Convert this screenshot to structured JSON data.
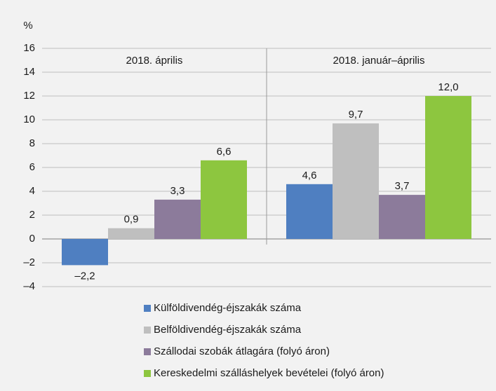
{
  "chart_data": {
    "type": "bar",
    "ylabel": "%",
    "categories": [
      "2018. április",
      "2018. január–április"
    ],
    "series": [
      {
        "name": "Külföldivendég-éjszakák száma",
        "color": "#4f7fc1",
        "values": [
          -2.2,
          4.6
        ],
        "value_labels": [
          "–2,2",
          "4,6"
        ]
      },
      {
        "name": "Belföldivendég-éjszakák száma",
        "color": "#bfbfbf",
        "values": [
          0.9,
          9.7
        ],
        "value_labels": [
          "0,9",
          "9,7"
        ]
      },
      {
        "name": "Szállodai szobák átlagára (folyó áron)",
        "color": "#8c7b9b",
        "values": [
          3.3,
          3.7
        ],
        "value_labels": [
          "3,3",
          "3,7"
        ]
      },
      {
        "name": "Kereskedelmi szálláshelyek bevételei (folyó áron)",
        "color": "#8dc63f",
        "values": [
          6.6,
          12.0
        ],
        "value_labels": [
          "6,6",
          "12,0"
        ]
      }
    ],
    "ylim": [
      -4,
      16
    ],
    "yticks": [
      {
        "value": -4,
        "label": "–4"
      },
      {
        "value": -2,
        "label": "–2"
      },
      0,
      2,
      4,
      6,
      8,
      10,
      12,
      14,
      16
    ],
    "grid": true
  }
}
